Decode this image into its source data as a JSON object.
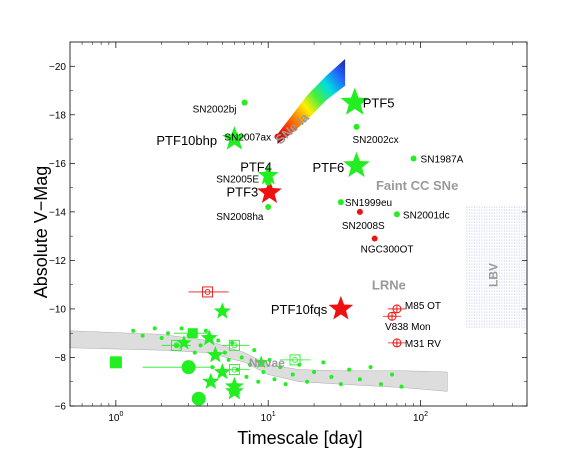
{
  "chart_data": {
    "type": "scatter",
    "xlabel": "Timescale [day]",
    "ylabel": "Absolute V−Mag",
    "x_scale": "log",
    "xlim": [
      0.5,
      500
    ],
    "ylim": [
      -6,
      -21
    ],
    "y_inverted": true,
    "grid": false,
    "x_ticks": [
      {
        "value": 1,
        "base": "10",
        "exp": "0"
      },
      {
        "value": 10,
        "base": "10",
        "exp": "1"
      },
      {
        "value": 100,
        "base": "10",
        "exp": "2"
      }
    ],
    "y_ticks": [
      {
        "value": -20,
        "label": "−20"
      },
      {
        "value": -18,
        "label": "−18"
      },
      {
        "value": -16,
        "label": "−16"
      },
      {
        "value": -14,
        "label": "−14"
      },
      {
        "value": -12,
        "label": "−12"
      },
      {
        "value": -10,
        "label": "−10"
      },
      {
        "value": -8,
        "label": "−8"
      },
      {
        "value": -6,
        "label": "−6"
      }
    ],
    "colors": {
      "green": "#22ee22",
      "red": "#ee1111",
      "region_text": "#9a9a9a",
      "band": "#dddddd",
      "lbv": "#9aa0e8"
    },
    "regions": [
      {
        "label": "SNe Ia",
        "x": 15,
        "y": -17.3,
        "size": 13,
        "rotate": -42
      },
      {
        "label": "Faint CC SNe",
        "x": 95,
        "y": -14.9,
        "size": 13,
        "rotate": 0
      },
      {
        "label": "LRNe",
        "x": 62,
        "y": -10.8,
        "size": 13,
        "rotate": 0
      },
      {
        "label": "Novae",
        "x": 9.8,
        "y": -7.6,
        "size": 12,
        "rotate": 0
      },
      {
        "label": "LBV",
        "x": 320,
        "y": -11.4,
        "size": 12,
        "rotate": -90
      }
    ],
    "snia_band": {
      "upper": [
        [
          11.5,
          -17.2
        ],
        [
          14,
          -17.9
        ],
        [
          18,
          -18.8
        ],
        [
          24,
          -19.6
        ],
        [
          32,
          -20.3
        ]
      ],
      "lower": [
        [
          32,
          -19.2
        ],
        [
          24,
          -18.6
        ],
        [
          18,
          -17.8
        ],
        [
          14,
          -17.2
        ],
        [
          11.5,
          -16.8
        ]
      ]
    },
    "nova_band": {
      "upper": [
        [
          0.5,
          -9.1
        ],
        [
          2,
          -8.95
        ],
        [
          4,
          -8.7
        ],
        [
          7,
          -8.2
        ],
        [
          10,
          -7.7
        ],
        [
          16,
          -7.5
        ],
        [
          30,
          -7.45
        ],
        [
          80,
          -7.45
        ],
        [
          150,
          -7.4
        ]
      ],
      "lower": [
        [
          150,
          -6.6
        ],
        [
          80,
          -6.75
        ],
        [
          30,
          -6.9
        ],
        [
          16,
          -7.0
        ],
        [
          10,
          -7.3
        ],
        [
          7,
          -7.8
        ],
        [
          4,
          -8.2
        ],
        [
          2,
          -8.3
        ],
        [
          0.5,
          -8.4
        ]
      ]
    },
    "lbv_box": {
      "x": [
        200,
        500
      ],
      "y": [
        -9.2,
        -14.2
      ]
    },
    "labeled_points": [
      {
        "label": "PTF5",
        "x": 37,
        "y": -18.5,
        "marker": "star",
        "color": "green",
        "size": 15,
        "font": 13,
        "label_dx": 8,
        "label_dy": 5
      },
      {
        "label": "PTF10bhp",
        "x": 6.0,
        "y": -17.0,
        "marker": "star",
        "color": "green",
        "size": 13,
        "font": 13,
        "label_dx": -78,
        "label_dy": 6
      },
      {
        "label": "PTF4",
        "x": 10.0,
        "y": -15.5,
        "marker": "star",
        "color": "green",
        "size": 11,
        "font": 13,
        "label_dx": -28,
        "label_dy": -4
      },
      {
        "label": "PTF6",
        "x": 38,
        "y": -15.9,
        "marker": "star",
        "color": "green",
        "size": 14,
        "font": 13,
        "label_dx": -44,
        "label_dy": 6
      },
      {
        "label": "PTF3",
        "x": 10.2,
        "y": -14.8,
        "marker": "star",
        "color": "red",
        "size": 13,
        "font": 13,
        "label_dx": -43,
        "label_dy": 4
      },
      {
        "label": "PTF10fqs",
        "x": 30,
        "y": -10.0,
        "marker": "star",
        "color": "red",
        "size": 13,
        "font": 13,
        "label_dx": -70,
        "label_dy": 5
      },
      {
        "label": "SN2002bj",
        "x": 7.0,
        "y": -18.5,
        "marker": "dot",
        "color": "green",
        "size": 3,
        "font": 10,
        "label_dx": -52,
        "label_dy": 10
      },
      {
        "label": "SN2007ax",
        "x": 11.5,
        "y": -17.1,
        "marker": "dot",
        "color": "red",
        "size": 3,
        "font": 10,
        "label_dx": -53,
        "label_dy": 4
      },
      {
        "label": "SN2002cx",
        "x": 38,
        "y": -17.5,
        "marker": "dot",
        "color": "green",
        "size": 3,
        "font": 10,
        "label_dx": -4,
        "label_dy": 16
      },
      {
        "label": "SN1987A",
        "x": 90,
        "y": -16.2,
        "marker": "dot",
        "color": "green",
        "size": 3,
        "font": 10,
        "label_dx": 7,
        "label_dy": 4
      },
      {
        "label": "SN2005E",
        "x": 10.0,
        "y": -15.2,
        "marker": "dot",
        "color": "green",
        "size": 3,
        "font": 10,
        "label_dx": -52,
        "label_dy": 0
      },
      {
        "label": "SN2008ha",
        "x": 10.0,
        "y": -14.2,
        "marker": "dot",
        "color": "green",
        "size": 3,
        "font": 10,
        "label_dx": -52,
        "label_dy": 13
      },
      {
        "label": "SN1999eu",
        "x": 30,
        "y": -14.4,
        "marker": "dot",
        "color": "green",
        "size": 3,
        "font": 10,
        "label_dx": 4,
        "label_dy": 4
      },
      {
        "label": "SN2008S",
        "x": 40,
        "y": -14.0,
        "marker": "dot",
        "color": "red",
        "size": 3,
        "font": 10,
        "label_dx": -18,
        "label_dy": 17
      },
      {
        "label": "SN2001dc",
        "x": 70,
        "y": -13.9,
        "marker": "dot",
        "color": "green",
        "size": 3,
        "font": 10,
        "label_dx": 6,
        "label_dy": 4
      },
      {
        "label": "NGC300OT",
        "x": 50,
        "y": -12.9,
        "marker": "dot",
        "color": "red",
        "size": 3,
        "font": 10,
        "label_dx": -14,
        "label_dy": 14
      },
      {
        "label": "M85 OT",
        "x": 70,
        "y": -10.0,
        "marker": "circle-cross",
        "color": "red",
        "size": 4,
        "font": 10,
        "label_dx": 8,
        "label_dy": 0
      },
      {
        "label": "V838 Mon",
        "x": 65,
        "y": -9.7,
        "marker": "circle-cross",
        "color": "red",
        "size": 4,
        "font": 10,
        "label_dx": -7,
        "label_dy": 14
      },
      {
        "label": "M31 RV",
        "x": 70,
        "y": -8.6,
        "marker": "circle-cross",
        "color": "red",
        "size": 4,
        "font": 10,
        "label_dx": 8,
        "label_dy": 4
      }
    ],
    "nova_points": [
      {
        "x": 1.0,
        "y": -7.8,
        "marker": "square",
        "size": 6
      },
      {
        "x": 3.0,
        "y": -7.6,
        "marker": "circle",
        "size": 7
      },
      {
        "x": 3.5,
        "y": -6.3,
        "marker": "circle",
        "size": 7
      },
      {
        "x": 3.2,
        "y": -9.0,
        "marker": "square",
        "size": 5
      },
      {
        "x": 5.0,
        "y": -9.9,
        "marker": "star",
        "size": 9
      },
      {
        "x": 4.1,
        "y": -8.8,
        "marker": "star",
        "size": 9
      },
      {
        "x": 4.5,
        "y": -8.1,
        "marker": "star",
        "size": 9
      },
      {
        "x": 4.2,
        "y": -7.0,
        "marker": "star",
        "size": 9
      },
      {
        "x": 5.0,
        "y": -7.4,
        "marker": "star",
        "size": 9
      },
      {
        "x": 6.0,
        "y": -6.8,
        "marker": "star",
        "size": 10
      },
      {
        "x": 6.0,
        "y": -6.6,
        "marker": "star",
        "size": 10
      },
      {
        "x": 2.8,
        "y": -8.6,
        "marker": "star",
        "size": 8
      },
      {
        "x": 9.0,
        "y": -7.8,
        "marker": "star",
        "size": 7
      },
      {
        "x": 1.3,
        "y": -9.1,
        "marker": "dot",
        "size": 2
      },
      {
        "x": 1.5,
        "y": -8.9,
        "marker": "dot",
        "size": 2
      },
      {
        "x": 1.8,
        "y": -9.2,
        "marker": "dot",
        "size": 2
      },
      {
        "x": 2.0,
        "y": -8.8,
        "marker": "dot",
        "size": 2
      },
      {
        "x": 2.2,
        "y": -9.0,
        "marker": "dot",
        "size": 2
      },
      {
        "x": 2.5,
        "y": -8.5,
        "marker": "dot",
        "size": 2
      },
      {
        "x": 2.7,
        "y": -9.2,
        "marker": "dot",
        "size": 2
      },
      {
        "x": 3.0,
        "y": -8.9,
        "marker": "dot",
        "size": 2
      },
      {
        "x": 3.3,
        "y": -8.2,
        "marker": "dot",
        "size": 2
      },
      {
        "x": 3.6,
        "y": -8.5,
        "marker": "dot",
        "size": 2
      },
      {
        "x": 3.9,
        "y": -9.1,
        "marker": "dot",
        "size": 2
      },
      {
        "x": 4.3,
        "y": -7.6,
        "marker": "dot",
        "size": 2
      },
      {
        "x": 4.7,
        "y": -8.7,
        "marker": "dot",
        "size": 2
      },
      {
        "x": 5.2,
        "y": -8.2,
        "marker": "dot",
        "size": 2
      },
      {
        "x": 5.5,
        "y": -7.9,
        "marker": "dot",
        "size": 2
      },
      {
        "x": 5.8,
        "y": -8.6,
        "marker": "dot",
        "size": 2
      },
      {
        "x": 6.3,
        "y": -7.5,
        "marker": "dot",
        "size": 2
      },
      {
        "x": 6.7,
        "y": -8.0,
        "marker": "dot",
        "size": 2
      },
      {
        "x": 7.2,
        "y": -7.2,
        "marker": "dot",
        "size": 2
      },
      {
        "x": 7.6,
        "y": -7.7,
        "marker": "dot",
        "size": 2
      },
      {
        "x": 8.1,
        "y": -8.3,
        "marker": "dot",
        "size": 2
      },
      {
        "x": 8.6,
        "y": -7.0,
        "marker": "dot",
        "size": 2
      },
      {
        "x": 9.3,
        "y": -7.4,
        "marker": "dot",
        "size": 2
      },
      {
        "x": 10.2,
        "y": -7.9,
        "marker": "dot",
        "size": 2
      },
      {
        "x": 11.0,
        "y": -7.1,
        "marker": "dot",
        "size": 2
      },
      {
        "x": 12.0,
        "y": -7.6,
        "marker": "dot",
        "size": 2
      },
      {
        "x": 13.0,
        "y": -6.9,
        "marker": "dot",
        "size": 2
      },
      {
        "x": 14.5,
        "y": -7.3,
        "marker": "dot",
        "size": 2
      },
      {
        "x": 16.0,
        "y": -7.7,
        "marker": "dot",
        "size": 2
      },
      {
        "x": 18.0,
        "y": -7.0,
        "marker": "dot",
        "size": 2
      },
      {
        "x": 20.0,
        "y": -7.4,
        "marker": "dot",
        "size": 2
      },
      {
        "x": 23.0,
        "y": -7.8,
        "marker": "dot",
        "size": 2
      },
      {
        "x": 26.0,
        "y": -7.2,
        "marker": "dot",
        "size": 2
      },
      {
        "x": 30.0,
        "y": -6.9,
        "marker": "dot",
        "size": 2
      },
      {
        "x": 34.0,
        "y": -7.5,
        "marker": "dot",
        "size": 2
      },
      {
        "x": 40.0,
        "y": -7.1,
        "marker": "dot",
        "size": 2
      },
      {
        "x": 47.0,
        "y": -7.6,
        "marker": "dot",
        "size": 2
      },
      {
        "x": 55.0,
        "y": -6.9,
        "marker": "dot",
        "size": 2
      },
      {
        "x": 65.0,
        "y": -7.3,
        "marker": "dot",
        "size": 2
      },
      {
        "x": 75.0,
        "y": -6.8,
        "marker": "dot",
        "size": 2
      }
    ],
    "open_marks": [
      {
        "x": 4.0,
        "y": -10.7,
        "color": "red",
        "xerr": [
          3.0,
          5.5
        ]
      },
      {
        "x": 2.5,
        "y": -8.5,
        "color": "green",
        "xerr": [
          2.0,
          3.1
        ]
      },
      {
        "x": 6.0,
        "y": -8.5,
        "color": "green",
        "xerr": [
          5.0,
          7.5
        ]
      },
      {
        "x": 6.0,
        "y": -7.5,
        "color": "green",
        "xerr": [
          5.0,
          7.5
        ]
      },
      {
        "x": 15.0,
        "y": -7.9,
        "color": "green",
        "xerr": [
          12.0,
          19.0
        ]
      }
    ],
    "error_bars": [
      {
        "x": 3.0,
        "y": -7.6,
        "xerr": [
          1.5,
          4.5
        ]
      },
      {
        "x": 3.2,
        "y": -9.0,
        "xerr": [
          2.4,
          4.0
        ]
      }
    ]
  }
}
